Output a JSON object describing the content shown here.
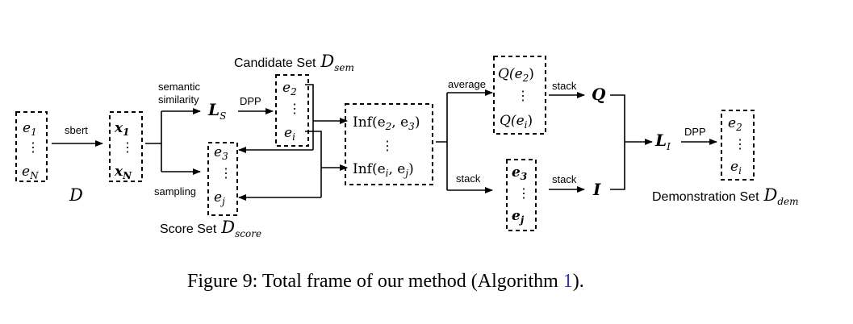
{
  "figure": {
    "caption_prefix": "Figure 9: Total frame of our method (Algorithm ",
    "caption_ref": "1",
    "caption_suffix": ")."
  },
  "labels": {
    "sbert": "sbert",
    "semantic": "semantic",
    "similarity": "similarity",
    "sampling": "sampling",
    "dpp1": "DPP",
    "dpp2": "DPP",
    "average": "average",
    "stack_top": "stack",
    "stack_left": "stack",
    "stack_bottom": "stack",
    "candidate_set": "Candidate Set",
    "score_set": "Score Set",
    "demonstration_set": "Demonstration Set",
    "D": "D",
    "D_sem": "D",
    "D_sem_sub": "sem",
    "D_score": "D",
    "D_score_sub": "score",
    "D_dem": "D",
    "D_dem_sub": "dem"
  },
  "symbols": {
    "e": "e",
    "x": "x",
    "L": "L",
    "Q": "Q",
    "I": "I",
    "sub_1": "1",
    "sub_N": "N",
    "sub_2": "2",
    "sub_3": "3",
    "sub_i": "i",
    "sub_j": "j",
    "sub_S": "S",
    "sub_I": "I",
    "inf_top": "Inf(e",
    "inf_top_mid": ", e",
    "inf_top_end": ")",
    "inf_bot": "Inf(e",
    "inf_bot_mid": ", e",
    "inf_bot_end": ")",
    "q_top": "Q(e",
    "q_top_end": ")",
    "q_bot": "Q(e",
    "q_bot_end": ")",
    "vdots": "⋮"
  }
}
